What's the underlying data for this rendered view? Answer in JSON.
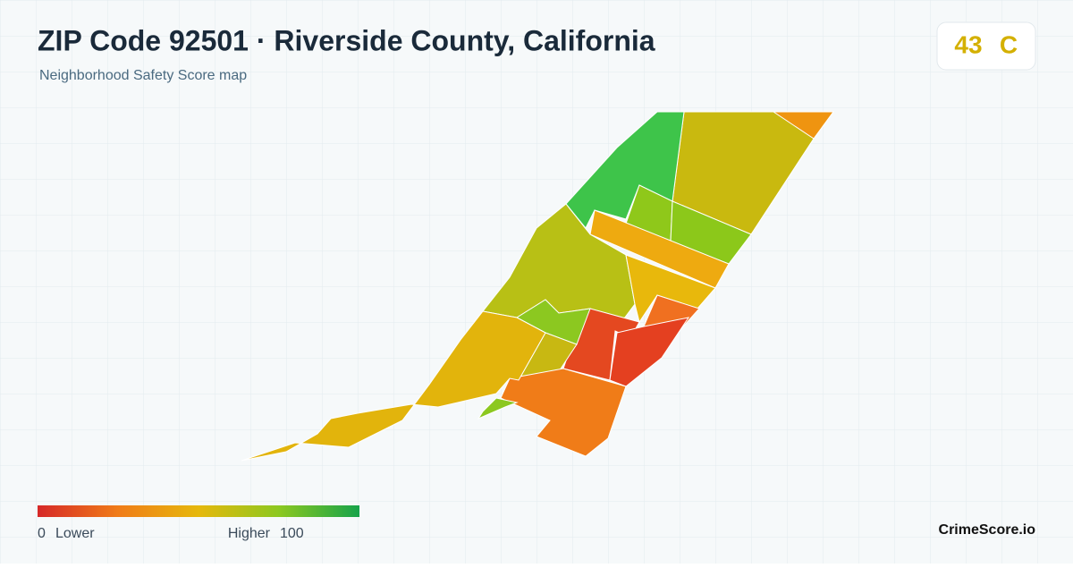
{
  "header": {
    "title": "ZIP Code 92501 · Riverside County, California",
    "subtitle": "Neighborhood Safety Score map"
  },
  "badge": {
    "score": "43",
    "grade": "C"
  },
  "legend": {
    "min": "0",
    "min_label": "Lower",
    "max_label": "Higher",
    "max": "100"
  },
  "brand": "CrimeScore.io"
}
